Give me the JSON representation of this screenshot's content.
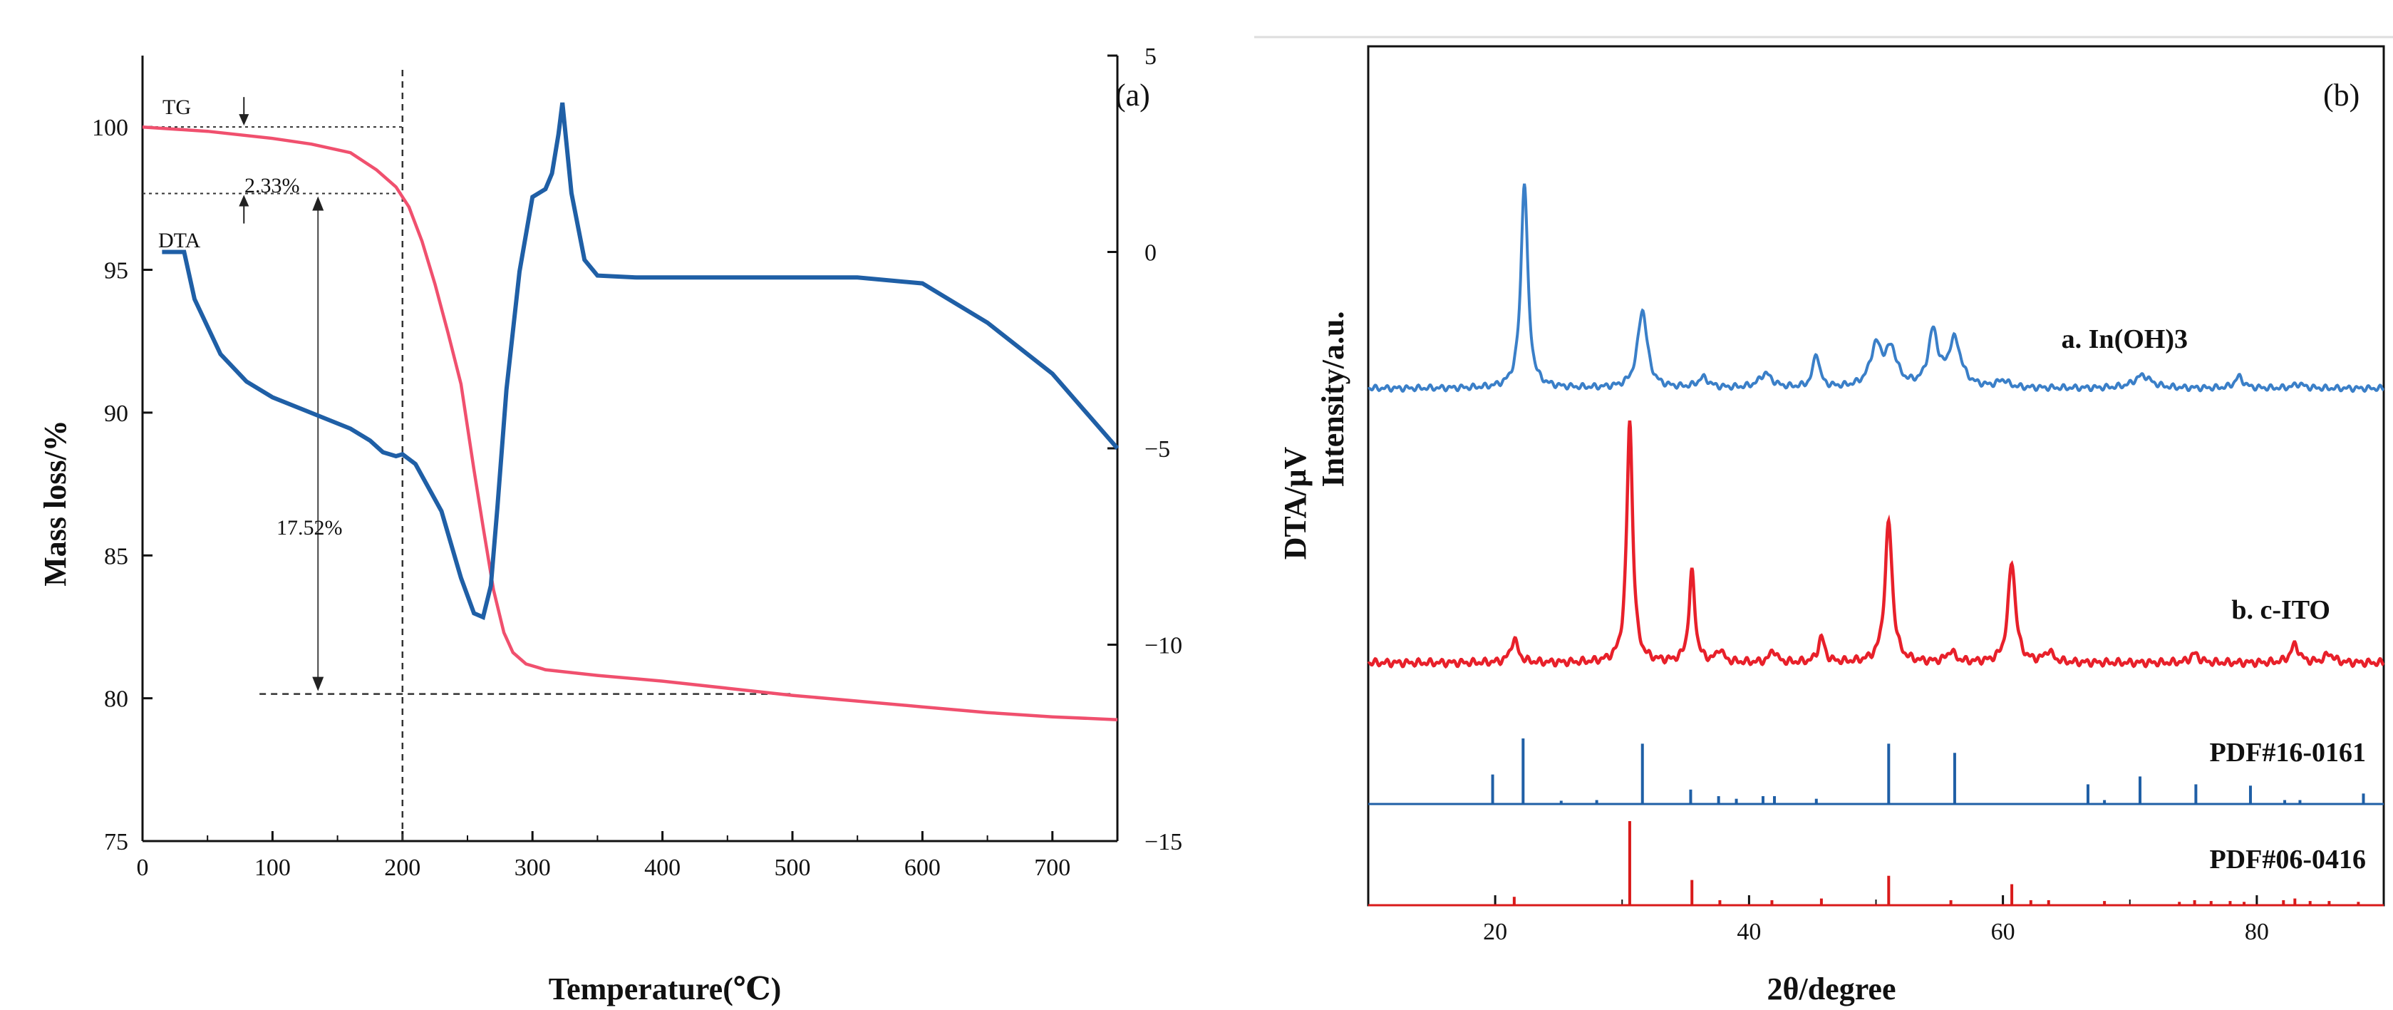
{
  "colors": {
    "tg": "#f0506e",
    "dta": "#1f5fa6",
    "ito": "#e8202a",
    "inoh": "#3a7fc8",
    "pdf_blue": "#1f5fa6",
    "pdf_red": "#d91a1a",
    "axis": "#111111"
  },
  "chart_data": [
    {
      "type": "line",
      "panel_label": "(a)",
      "xlabel": "Temperature(℃)",
      "ylabel": "Mass loss/%",
      "y2label": "DTA/μV",
      "xlim": [
        0,
        750
      ],
      "ylim": [
        75,
        102.5
      ],
      "y2lim": [
        -15,
        5
      ],
      "x_ticks": [
        "0",
        "100",
        "200",
        "300",
        "400",
        "500",
        "600",
        "700"
      ],
      "y_ticks": [
        "75",
        "80",
        "85",
        "90",
        "95",
        "100"
      ],
      "y2_ticks": [
        "5",
        "0",
        "-5",
        "-10",
        "-15"
      ],
      "series": [
        {
          "name": "TG",
          "axis": "left",
          "x": [
            0,
            50,
            100,
            130,
            160,
            180,
            195,
            205,
            215,
            225,
            235,
            245,
            255,
            262,
            270,
            278,
            285,
            295,
            310,
            350,
            400,
            450,
            500,
            550,
            600,
            650,
            700,
            750
          ],
          "values": [
            100.0,
            99.85,
            99.6,
            99.4,
            99.1,
            98.5,
            97.9,
            97.2,
            96.0,
            94.5,
            92.8,
            91.0,
            88.0,
            86.0,
            83.8,
            82.3,
            81.6,
            81.2,
            81.0,
            80.8,
            80.6,
            80.35,
            80.1,
            79.9,
            79.7,
            79.5,
            79.35,
            79.25
          ]
        },
        {
          "name": "DTA",
          "axis": "right",
          "x": [
            15,
            32,
            40,
            60,
            80,
            100,
            130,
            160,
            175,
            185,
            195,
            200,
            210,
            230,
            245,
            255,
            262,
            268,
            273,
            280,
            290,
            300,
            310,
            315,
            320,
            323,
            330,
            340,
            350,
            380,
            450,
            550,
            600,
            650,
            700,
            750
          ],
          "values": [
            0.0,
            0.0,
            -1.2,
            -2.6,
            -3.3,
            -3.7,
            -4.1,
            -4.5,
            -4.8,
            -5.1,
            -5.2,
            -5.15,
            -5.4,
            -6.6,
            -8.3,
            -9.2,
            -9.3,
            -8.5,
            -6.5,
            -3.5,
            -0.5,
            1.4,
            1.6,
            2.0,
            3.0,
            3.8,
            1.5,
            -0.2,
            -0.6,
            -0.65,
            -0.65,
            -0.65,
            -0.8,
            -1.8,
            -3.1,
            -5.0
          ]
        }
      ],
      "annotations": {
        "tg_label": "TG",
        "dta_label": "DTA",
        "step1": "2.33%",
        "step2": "17.52%",
        "vline_x": 200,
        "level_top": 100,
        "level_mid": 97.67,
        "level_bottom": 80.15
      }
    },
    {
      "type": "line",
      "panel_label": "(b)",
      "xlabel": "2θ/degree",
      "ylabel": "Intensity/a.u.",
      "xlim": [
        10,
        90
      ],
      "x_ticks": [
        "20",
        "40",
        "60",
        "80"
      ],
      "series": [
        {
          "name": "a. In(OH)3",
          "baseline": -0.3,
          "peaks": [
            [
              22.3,
              1.45,
              0.32
            ],
            [
              31.6,
              0.55,
              0.45
            ],
            [
              36.4,
              0.07,
              0.5
            ],
            [
              41.3,
              0.1,
              0.6
            ],
            [
              45.3,
              0.24,
              0.3
            ],
            [
              50.0,
              0.28,
              0.55
            ],
            [
              51.2,
              0.25,
              0.55
            ],
            [
              54.5,
              0.38,
              0.45
            ],
            [
              56.2,
              0.33,
              0.6
            ],
            [
              60.0,
              0.05,
              0.5
            ],
            [
              71.0,
              0.09,
              0.8
            ],
            [
              78.6,
              0.08,
              0.4
            ],
            [
              83.3,
              0.03,
              0.5
            ]
          ]
        },
        {
          "name": "b. c-ITO",
          "baseline": -0.3,
          "peaks": [
            [
              21.5,
              0.13,
              0.35
            ],
            [
              30.6,
              1.35,
              0.28
            ],
            [
              35.5,
              0.5,
              0.28
            ],
            [
              37.7,
              0.07,
              0.3
            ],
            [
              41.9,
              0.07,
              0.3
            ],
            [
              45.7,
              0.14,
              0.3
            ],
            [
              51.0,
              0.78,
              0.35
            ],
            [
              55.9,
              0.06,
              0.4
            ],
            [
              60.7,
              0.56,
              0.35
            ],
            [
              63.6,
              0.06,
              0.4
            ],
            [
              75.1,
              0.05,
              0.4
            ],
            [
              83.0,
              0.1,
              0.4
            ],
            [
              85.7,
              0.05,
              0.4
            ]
          ]
        }
      ],
      "reference_patterns": [
        {
          "name": "PDF#16-0161",
          "lines": [
            [
              19.8,
              0.45
            ],
            [
              22.2,
              1.0
            ],
            [
              25.2,
              0.05
            ],
            [
              28.0,
              0.06
            ],
            [
              31.6,
              0.92
            ],
            [
              35.4,
              0.22
            ],
            [
              37.6,
              0.12
            ],
            [
              39.0,
              0.08
            ],
            [
              41.1,
              0.12
            ],
            [
              42.0,
              0.12
            ],
            [
              45.3,
              0.08
            ],
            [
              51.0,
              0.92
            ],
            [
              56.2,
              0.78
            ],
            [
              66.7,
              0.3
            ],
            [
              68.0,
              0.06
            ],
            [
              70.8,
              0.42
            ],
            [
              75.2,
              0.3
            ],
            [
              79.5,
              0.28
            ],
            [
              82.2,
              0.06
            ],
            [
              83.4,
              0.06
            ],
            [
              88.4,
              0.16
            ]
          ]
        },
        {
          "name": "PDF#06-0416",
          "lines": [
            [
              21.5,
              0.1
            ],
            [
              30.6,
              1.0
            ],
            [
              35.5,
              0.3
            ],
            [
              37.7,
              0.06
            ],
            [
              41.8,
              0.06
            ],
            [
              45.7,
              0.08
            ],
            [
              51.0,
              0.35
            ],
            [
              55.9,
              0.06
            ],
            [
              60.7,
              0.25
            ],
            [
              62.2,
              0.06
            ],
            [
              63.6,
              0.06
            ],
            [
              68.0,
              0.05
            ],
            [
              73.9,
              0.04
            ],
            [
              75.1,
              0.06
            ],
            [
              76.4,
              0.05
            ],
            [
              77.9,
              0.05
            ],
            [
              79.0,
              0.04
            ],
            [
              82.1,
              0.06
            ],
            [
              83.0,
              0.08
            ],
            [
              84.2,
              0.05
            ],
            [
              85.7,
              0.05
            ],
            [
              88.0,
              0.04
            ]
          ]
        }
      ]
    }
  ]
}
